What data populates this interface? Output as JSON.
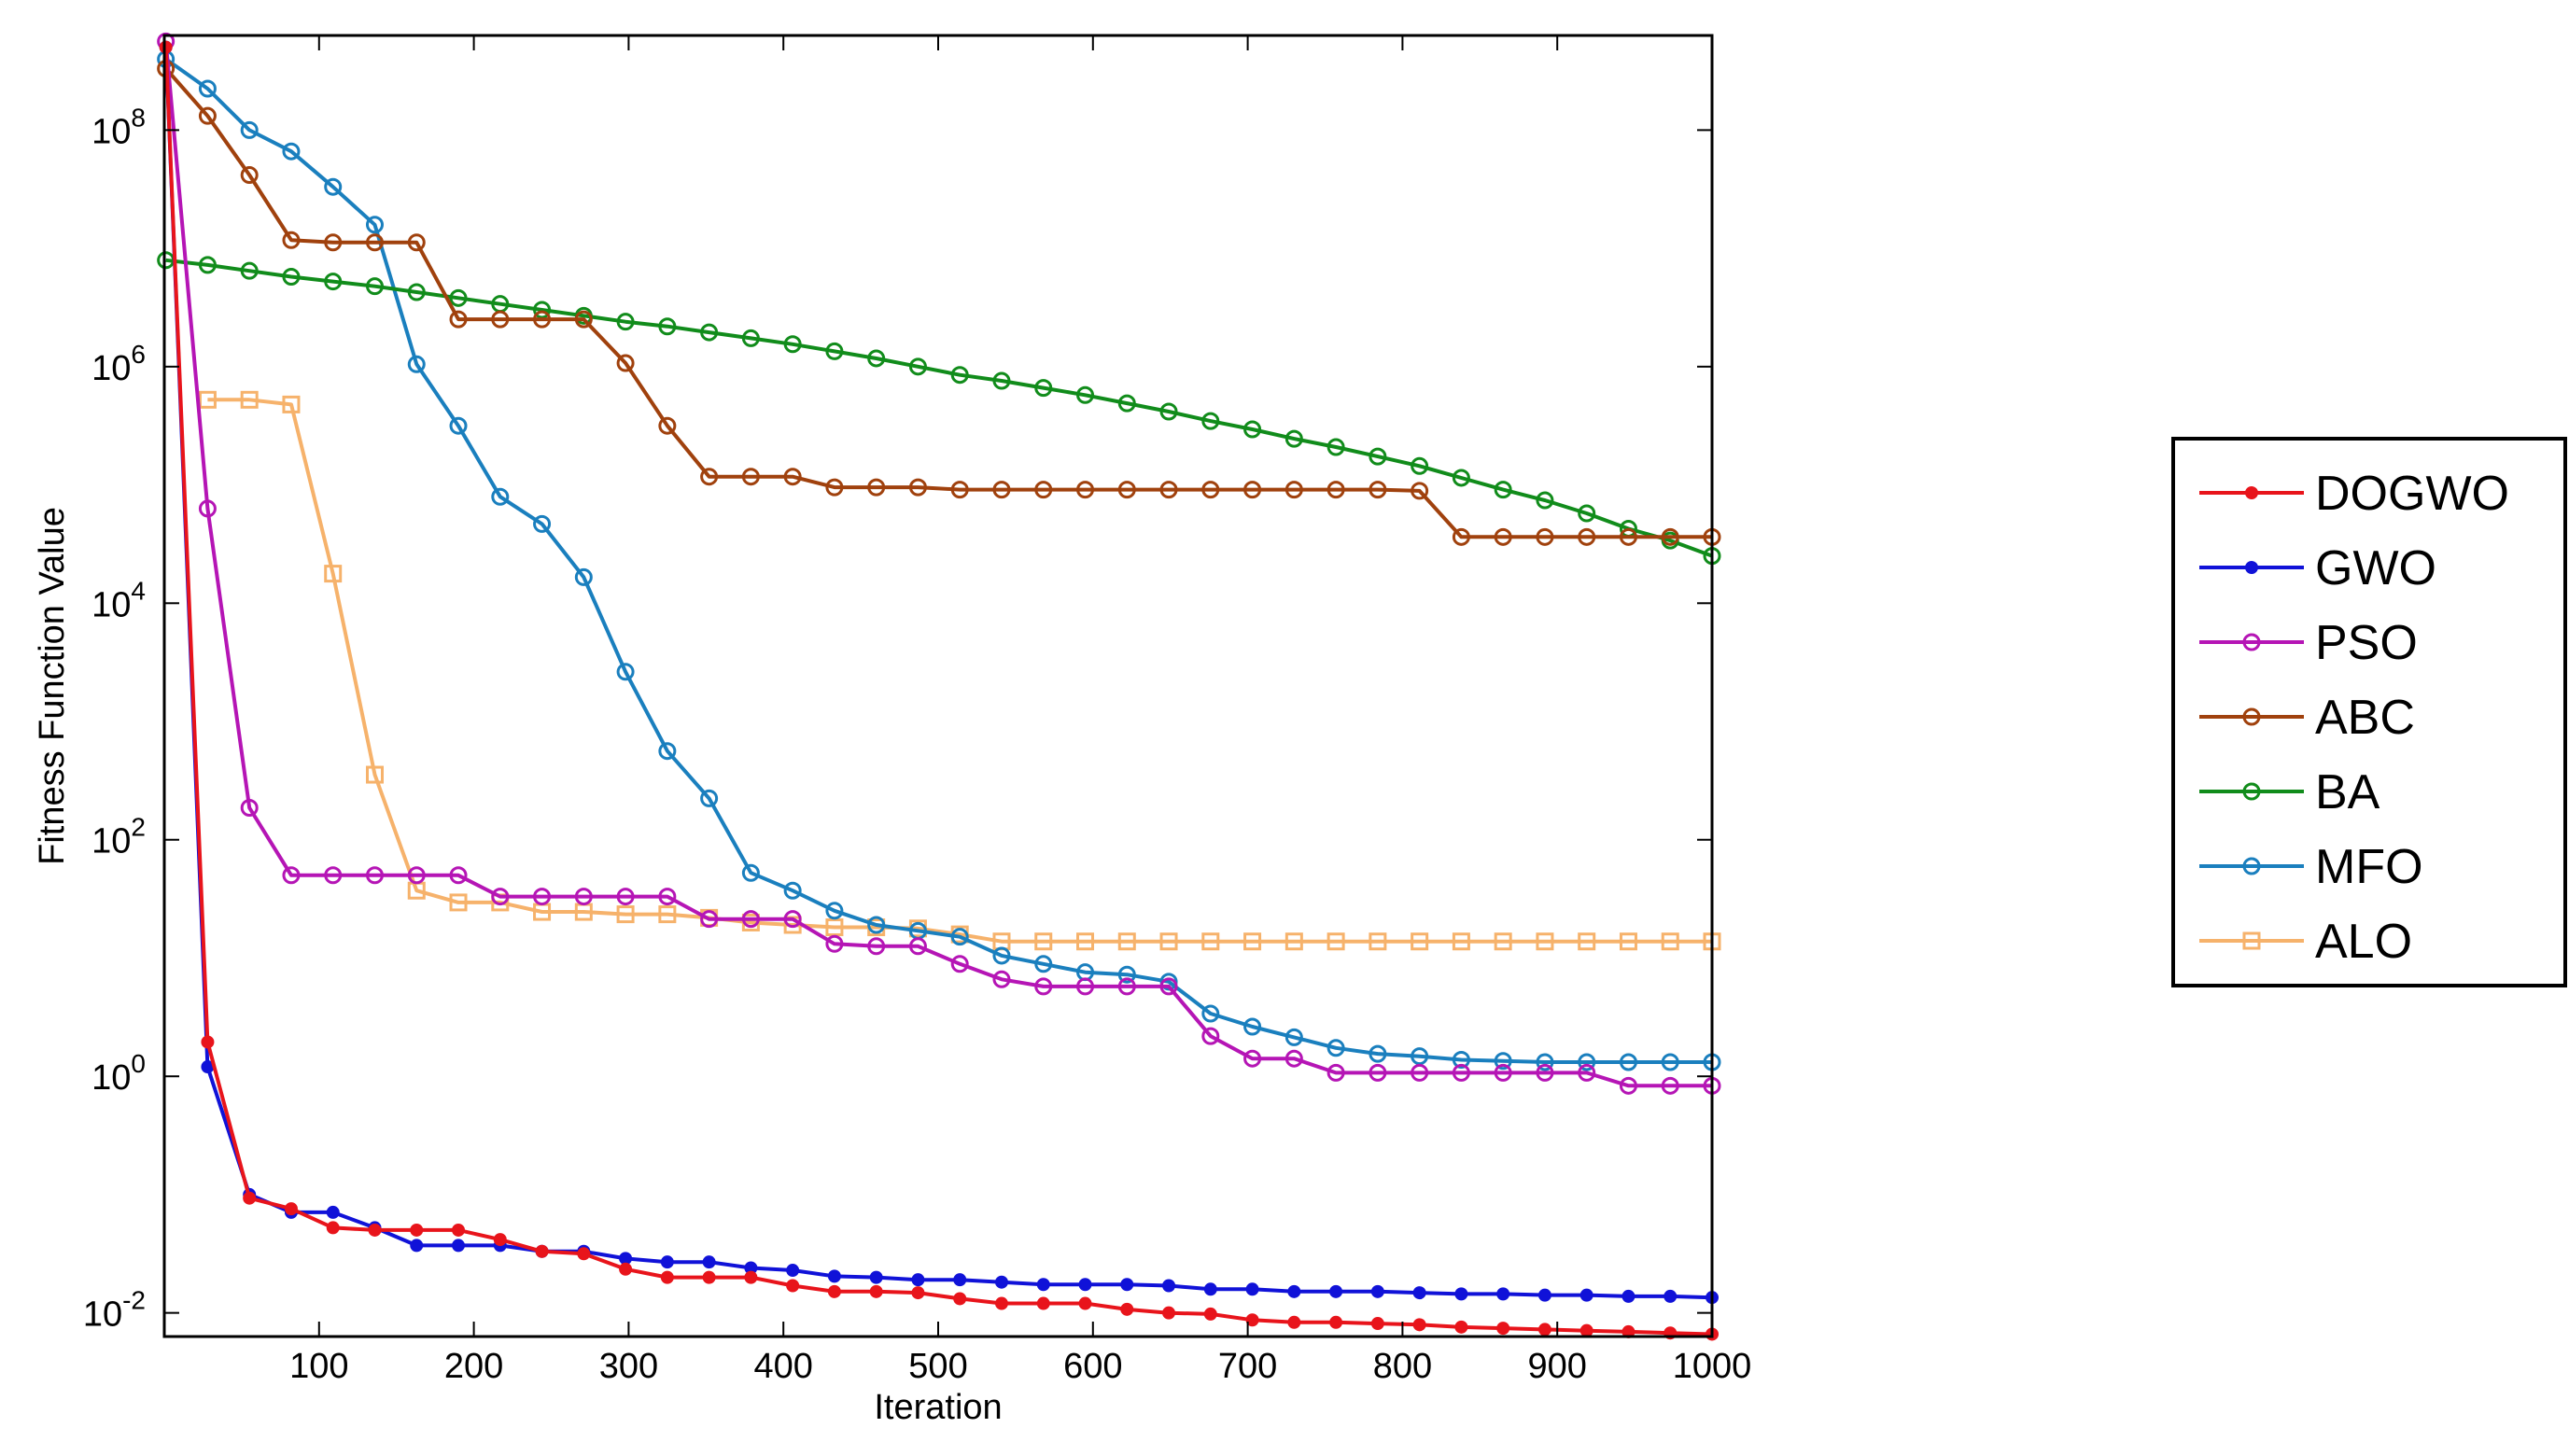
{
  "chart_data": {
    "type": "line",
    "xlabel": "Iteration",
    "ylabel": "Fitness Function Value",
    "x_scale": "linear",
    "y_scale": "log",
    "xlim": [
      0,
      1000
    ],
    "ylim_log10": [
      -2.2,
      8.8
    ],
    "x_ticks": [
      100,
      200,
      300,
      400,
      500,
      600,
      700,
      800,
      900,
      1000
    ],
    "x_tick_labels": [
      "100",
      "200",
      "300",
      "400",
      "500",
      "600",
      "700",
      "800",
      "900",
      "1000"
    ],
    "y_ticks_log10": [
      -2,
      0,
      2,
      4,
      6,
      8
    ],
    "y_tick_labels": [
      {
        "base": "10",
        "exp": "-2"
      },
      {
        "base": "10",
        "exp": "0"
      },
      {
        "base": "10",
        "exp": "2"
      },
      {
        "base": "10",
        "exp": "4"
      },
      {
        "base": "10",
        "exp": "6"
      },
      {
        "base": "10",
        "exp": "8"
      }
    ],
    "legend_position": "right-outside",
    "x": [
      1,
      28,
      55,
      82,
      109,
      136,
      163,
      190,
      217,
      244,
      271,
      298,
      325,
      352,
      379,
      406,
      433,
      460,
      487,
      514,
      541,
      568,
      595,
      622,
      649,
      676,
      703,
      730,
      757,
      784,
      811,
      838,
      865,
      892,
      919,
      946,
      973,
      1000
    ],
    "series": [
      {
        "name": "DOGWO",
        "color": "#e8141b",
        "marker": "dot",
        "values_log10": [
          8.7,
          0.29,
          -1.03,
          -1.12,
          -1.28,
          -1.3,
          -1.3,
          -1.3,
          -1.38,
          -1.48,
          -1.5,
          -1.63,
          -1.7,
          -1.7,
          -1.7,
          -1.77,
          -1.82,
          -1.82,
          -1.83,
          -1.88,
          -1.92,
          -1.92,
          -1.92,
          -1.97,
          -2.0,
          -2.01,
          -2.06,
          -2.08,
          -2.08,
          -2.09,
          -2.1,
          -2.12,
          -2.13,
          -2.14,
          -2.15,
          -2.16,
          -2.17,
          -2.18
        ]
      },
      {
        "name": "GWO",
        "color": "#1012d8",
        "marker": "dot",
        "values_log10": [
          8.7,
          0.08,
          -1.0,
          -1.15,
          -1.15,
          -1.28,
          -1.43,
          -1.43,
          -1.43,
          -1.48,
          -1.48,
          -1.54,
          -1.57,
          -1.57,
          -1.62,
          -1.64,
          -1.69,
          -1.7,
          -1.72,
          -1.72,
          -1.74,
          -1.76,
          -1.76,
          -1.76,
          -1.77,
          -1.8,
          -1.8,
          -1.82,
          -1.82,
          -1.82,
          -1.83,
          -1.84,
          -1.84,
          -1.85,
          -1.85,
          -1.86,
          -1.86,
          -1.87
        ]
      },
      {
        "name": "PSO",
        "color": "#b515b5",
        "marker": "circle",
        "values_log10": [
          8.75,
          4.8,
          2.27,
          1.7,
          1.7,
          1.7,
          1.7,
          1.7,
          1.52,
          1.52,
          1.52,
          1.52,
          1.52,
          1.33,
          1.33,
          1.33,
          1.12,
          1.1,
          1.1,
          0.95,
          0.82,
          0.76,
          0.76,
          0.76,
          0.76,
          0.34,
          0.15,
          0.15,
          0.03,
          0.03,
          0.03,
          0.03,
          0.03,
          0.03,
          0.03,
          -0.08,
          -0.08,
          -0.08
        ]
      },
      {
        "name": "ABC",
        "color": "#a0410d",
        "marker": "circle",
        "values_log10": [
          8.52,
          8.12,
          7.62,
          7.07,
          7.05,
          7.05,
          7.05,
          6.4,
          6.4,
          6.4,
          6.4,
          6.03,
          5.5,
          5.07,
          5.07,
          5.07,
          4.98,
          4.98,
          4.98,
          4.96,
          4.96,
          4.96,
          4.96,
          4.96,
          4.96,
          4.96,
          4.96,
          4.96,
          4.96,
          4.96,
          4.95,
          4.56,
          4.56,
          4.56,
          4.56,
          4.56,
          4.56,
          4.56
        ]
      },
      {
        "name": "BA",
        "color": "#118c1b",
        "marker": "circle",
        "values_log10": [
          6.9,
          6.86,
          6.81,
          6.76,
          6.72,
          6.68,
          6.63,
          6.58,
          6.53,
          6.48,
          6.43,
          6.38,
          6.34,
          6.29,
          6.24,
          6.19,
          6.13,
          6.07,
          6.0,
          5.93,
          5.88,
          5.82,
          5.76,
          5.69,
          5.62,
          5.54,
          5.47,
          5.39,
          5.32,
          5.24,
          5.16,
          5.06,
          4.96,
          4.87,
          4.76,
          4.63,
          4.53,
          4.4
        ]
      },
      {
        "name": "MFO",
        "color": "#1a7fbe",
        "marker": "circle",
        "values_log10": [
          8.6,
          8.35,
          8.0,
          7.82,
          7.52,
          7.2,
          6.02,
          5.5,
          4.9,
          4.67,
          4.22,
          3.42,
          2.75,
          2.35,
          1.72,
          1.57,
          1.4,
          1.28,
          1.23,
          1.18,
          1.02,
          0.95,
          0.88,
          0.86,
          0.8,
          0.53,
          0.42,
          0.33,
          0.24,
          0.19,
          0.17,
          0.14,
          0.13,
          0.12,
          0.12,
          0.12,
          0.12,
          0.12
        ]
      },
      {
        "name": "ALO",
        "color": "#f6b26b",
        "marker": "square",
        "values_log10": [
          null,
          5.72,
          5.72,
          5.68,
          4.25,
          2.55,
          1.57,
          1.47,
          1.47,
          1.39,
          1.39,
          1.37,
          1.37,
          1.34,
          1.3,
          1.28,
          1.26,
          1.26,
          1.25,
          1.2,
          1.14,
          1.14,
          1.14,
          1.14,
          1.14,
          1.14,
          1.14,
          1.14,
          1.14,
          1.14,
          1.14,
          1.14,
          1.14,
          1.14,
          1.14,
          1.14,
          1.14,
          1.14
        ]
      }
    ]
  }
}
